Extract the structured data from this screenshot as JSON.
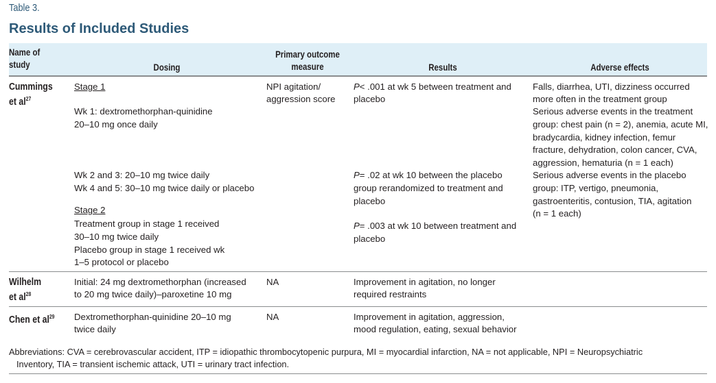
{
  "table_label": "Table 3.",
  "title": "Results of Included Studies",
  "headers": {
    "name": [
      "Name of",
      "study"
    ],
    "dosing": "Dosing",
    "outcome": [
      "Primary outcome",
      "measure"
    ],
    "results": "Results",
    "adverse": "Adverse effects"
  },
  "rows": [
    {
      "name": "Cummings",
      "name2": "et al",
      "ref": "27",
      "dosing": {
        "stage1": "Stage 1",
        "wk1": [
          "Wk 1: dextromethorphan-quinidine",
          "20–10 mg once daily"
        ],
        "wk23": "Wk 2 and 3: 20–10 mg twice daily",
        "wk45": "Wk 4 and 5: 30–10 mg twice daily or placebo",
        "stage2": "Stage 2",
        "stage2_lines": [
          "Treatment group in stage 1 received",
          "30–10 mg twice daily",
          "Placebo group in stage 1 received wk",
          "1–5 protocol or placebo"
        ]
      },
      "outcome": [
        "NPI agitation/",
        "aggression score"
      ],
      "results": [
        {
          "p": "P",
          "lines": [
            "< .001 at wk 5 between treatment and",
            "placebo"
          ]
        },
        {
          "p": "P",
          "lines": [
            "= .02 at wk 10 between the placebo",
            "group rerandomized to treatment and",
            "placebo"
          ]
        },
        {
          "p": "P",
          "lines": [
            "= .003 at wk 10 between treatment and",
            "placebo"
          ]
        }
      ],
      "adverse": [
        "Falls, diarrhea, UTI, dizziness occurred",
        "more often in the treatment group",
        "Serious adverse events in the treatment",
        "group: chest pain (n = 2), anemia, acute MI,",
        "bradycardia, kidney infection, femur",
        "fracture, dehydration, colon cancer, CVA,",
        "aggression, hematuria (n = 1 each)",
        "Serious adverse events in the placebo",
        "group: ITP, vertigo, pneumonia,",
        "gastroenteritis, contusion, TIA, agitation",
        "(n = 1 each)"
      ]
    },
    {
      "name": "Wilhelm",
      "name2": "et al",
      "ref": "28",
      "dosing": [
        "Initial: 24 mg dextromethorphan (increased",
        "to 20 mg twice daily)–paroxetine 10 mg"
      ],
      "outcome": "NA",
      "results": [
        "Improvement in agitation, no longer",
        "required restraints"
      ]
    },
    {
      "name": "Chen et al",
      "ref": "29",
      "dosing": [
        "Dextromethorphan-quinidine 20–10 mg",
        "twice daily"
      ],
      "outcome": "NA",
      "results": [
        "Improvement in agitation, aggression,",
        "mood regulation, eating, sexual behavior"
      ]
    }
  ],
  "footnote": [
    "Abbreviations: CVA = cerebrovascular accident, ITP = idiopathic thrombocytopenic purpura, MI = myocardial infarction, NA = not applicable, NPI = Neuropsychiatric",
    "Inventory, TIA = transient ischemic attack, UTI = urinary tract infection."
  ],
  "colors": {
    "title": "#2e5a78",
    "header_bg": "#dfeff7",
    "rule": "#8a8c8e"
  }
}
